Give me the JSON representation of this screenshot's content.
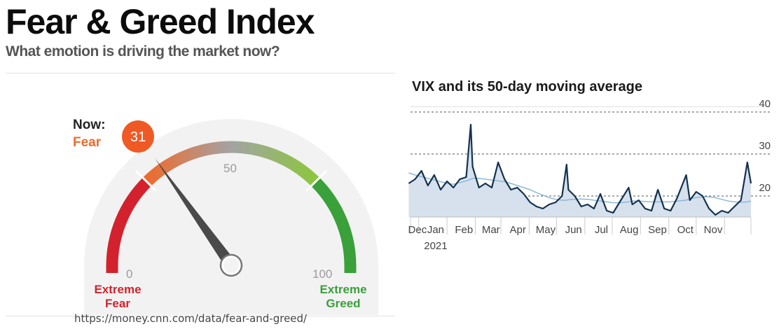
{
  "header": {
    "title": "Fear & Greed Index",
    "subtitle": "What emotion is driving the market now?"
  },
  "gauge": {
    "now_label": "Now:",
    "value": "31",
    "status": "Fear",
    "min_label": "0",
    "mid_label": "50",
    "max_label": "100",
    "extreme_fear_label": [
      "Extreme",
      "Fear"
    ],
    "extreme_greed_label": [
      "Extreme",
      "Greed"
    ],
    "colors": {
      "extreme_fear": "#d3222d",
      "fear": "#ef6a2c",
      "neutral": "#9b9b9b",
      "greed": "#8cc63f",
      "extreme_greed": "#39a03a",
      "needle": "#4a4a4a",
      "badge": "#ef5a24"
    }
  },
  "source": {
    "url": "https://money.cnn.com/data/fear-and-greed/"
  },
  "chart_data": {
    "type": "area",
    "title": "VIX and its 50-day moving average",
    "x": [
      "2020-11-20",
      "2020-11-27",
      "2020-12-04",
      "2020-12-11",
      "2020-12-18",
      "2020-12-25",
      "2021-01-01",
      "2021-01-08",
      "2021-01-15",
      "2021-01-22",
      "2021-01-27",
      "2021-01-29",
      "2021-02-05",
      "2021-02-12",
      "2021-02-19",
      "2021-02-26",
      "2021-03-05",
      "2021-03-12",
      "2021-03-19",
      "2021-03-26",
      "2021-04-02",
      "2021-04-09",
      "2021-04-16",
      "2021-04-23",
      "2021-04-30",
      "2021-05-07",
      "2021-05-12",
      "2021-05-14",
      "2021-05-21",
      "2021-05-28",
      "2021-06-04",
      "2021-06-11",
      "2021-06-18",
      "2021-06-25",
      "2021-07-02",
      "2021-07-09",
      "2021-07-19",
      "2021-07-23",
      "2021-07-30",
      "2021-08-06",
      "2021-08-13",
      "2021-08-20",
      "2021-08-27",
      "2021-09-03",
      "2021-09-10",
      "2021-09-20",
      "2021-09-24",
      "2021-10-01",
      "2021-10-08",
      "2021-10-15",
      "2021-10-22",
      "2021-10-29",
      "2021-11-05",
      "2021-11-12",
      "2021-11-19",
      "2021-11-26",
      "2021-11-30"
    ],
    "series": [
      {
        "values": [
          23,
          24,
          26,
          22.5,
          25,
          21.5,
          23.5,
          22,
          24,
          24.5,
          37,
          27,
          22,
          23,
          22,
          28,
          24,
          21.5,
          22,
          20.5,
          18.5,
          17.5,
          17,
          18,
          18.5,
          20,
          27.5,
          21.5,
          20,
          17.5,
          18,
          17,
          20.5,
          16.5,
          16,
          18.5,
          22,
          18,
          19,
          17,
          16.5,
          21.5,
          17,
          16.5,
          19.5,
          25,
          19,
          21,
          20,
          17,
          15.5,
          16.5,
          16,
          17.5,
          19,
          28,
          23
        ]
      },
      {
        "values": [
          25.5,
          25,
          24.6,
          24.2,
          23.8,
          23.4,
          23,
          22.8,
          23.2,
          23.6,
          24,
          24.2,
          24.2,
          24,
          23.8,
          23.6,
          23.4,
          23,
          22.5,
          22,
          21.5,
          20.8,
          20.2,
          19.6,
          19.2,
          19,
          19,
          19.1,
          19.2,
          19.3,
          19.2,
          19,
          18.8,
          18.6,
          18.4,
          18.4,
          18.6,
          18.8,
          18.8,
          18.7,
          18.6,
          18.6,
          18.6,
          18.6,
          18.8,
          19,
          19.4,
          19.6,
          19.8,
          19.8,
          19.6,
          19.2,
          18.8,
          18.6,
          18.5,
          18.6,
          18.8
        ]
      }
    ],
    "xlabels": [
      "Dec",
      "Jan",
      "Feb",
      "Mar",
      "Apr",
      "May",
      "Jun",
      "Jul",
      "Aug",
      "Sep",
      "Oct",
      "Nov"
    ],
    "year_label": "2021",
    "yticks": [
      20,
      30,
      40
    ],
    "ylim": [
      15,
      40
    ],
    "grid": "horizontal-dashed",
    "colors": {
      "line": "#14324e",
      "average": "#8cb8d8",
      "fill": "#d6e1ed"
    }
  }
}
